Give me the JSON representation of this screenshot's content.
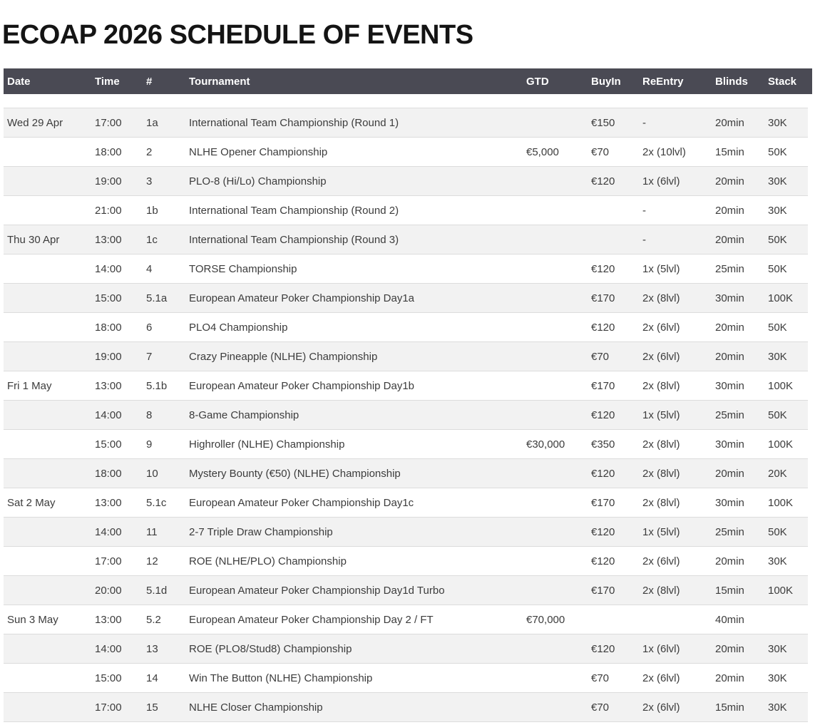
{
  "title": "ECOAP 2026 SCHEDULE OF EVENTS",
  "colors": {
    "header_background": "#4a4a54",
    "header_text": "#ffffff",
    "row_stripe": "#f2f2f2",
    "row_border": "#dcdcdc",
    "body_text": "#3c3c3c",
    "title_text": "#141414"
  },
  "table": {
    "columns": [
      "Date",
      "Time",
      "#",
      "Tournament",
      "GTD",
      "BuyIn",
      "ReEntry",
      "Blinds",
      "Stack"
    ],
    "column_keys": [
      "date",
      "time",
      "num",
      "tournament",
      "gtd",
      "buyin",
      "reentry",
      "blinds",
      "stack"
    ],
    "rows": [
      {
        "date": "Wed 29 Apr",
        "time": "17:00",
        "num": "1a",
        "tournament": "International Team Championship (Round 1)",
        "gtd": "",
        "buyin": "€150",
        "reentry": "-",
        "blinds": "20min",
        "stack": "30K"
      },
      {
        "date": "",
        "time": "18:00",
        "num": "2",
        "tournament": "NLHE Opener Championship",
        "gtd": "€5,000",
        "buyin": "€70",
        "reentry": "2x (10lvl)",
        "blinds": "15min",
        "stack": "50K"
      },
      {
        "date": "",
        "time": "19:00",
        "num": "3",
        "tournament": "PLO-8 (Hi/Lo) Championship",
        "gtd": "",
        "buyin": "€120",
        "reentry": "1x (6lvl)",
        "blinds": "20min",
        "stack": "30K"
      },
      {
        "date": "",
        "time": "21:00",
        "num": "1b",
        "tournament": "International Team Championship (Round 2)",
        "gtd": "",
        "buyin": "",
        "reentry": "-",
        "blinds": "20min",
        "stack": "30K"
      },
      {
        "date": "Thu 30 Apr",
        "time": "13:00",
        "num": "1c",
        "tournament": "International Team Championship (Round 3)",
        "gtd": "",
        "buyin": "",
        "reentry": "-",
        "blinds": "20min",
        "stack": "50K"
      },
      {
        "date": "",
        "time": "14:00",
        "num": "4",
        "tournament": "TORSE Championship",
        "gtd": "",
        "buyin": "€120",
        "reentry": "1x (5lvl)",
        "blinds": "25min",
        "stack": "50K"
      },
      {
        "date": "",
        "time": "15:00",
        "num": "5.1a",
        "tournament": "European Amateur Poker Championship Day1a",
        "gtd": "",
        "buyin": "€170",
        "reentry": "2x (8lvl)",
        "blinds": "30min",
        "stack": "100K"
      },
      {
        "date": "",
        "time": "18:00",
        "num": "6",
        "tournament": "PLO4 Championship",
        "gtd": "",
        "buyin": "€120",
        "reentry": "2x (6lvl)",
        "blinds": "20min",
        "stack": "50K"
      },
      {
        "date": "",
        "time": "19:00",
        "num": "7",
        "tournament": "Crazy Pineapple (NLHE) Championship",
        "gtd": "",
        "buyin": "€70",
        "reentry": "2x (6lvl)",
        "blinds": "20min",
        "stack": "30K"
      },
      {
        "date": "Fri 1 May",
        "time": "13:00",
        "num": "5.1b",
        "tournament": "European Amateur Poker Championship Day1b",
        "gtd": "",
        "buyin": "€170",
        "reentry": "2x (8lvl)",
        "blinds": "30min",
        "stack": "100K"
      },
      {
        "date": "",
        "time": "14:00",
        "num": "8",
        "tournament": "8-Game Championship",
        "gtd": "",
        "buyin": "€120",
        "reentry": "1x (5lvl)",
        "blinds": "25min",
        "stack": "50K"
      },
      {
        "date": "",
        "time": "15:00",
        "num": "9",
        "tournament": "Highroller (NLHE) Championship",
        "gtd": "€30,000",
        "buyin": "€350",
        "reentry": "2x (8lvl)",
        "blinds": "30min",
        "stack": "100K"
      },
      {
        "date": "",
        "time": "18:00",
        "num": "10",
        "tournament": "Mystery Bounty (€50) (NLHE) Championship",
        "gtd": "",
        "buyin": "€120",
        "reentry": "2x (8lvl)",
        "blinds": "20min",
        "stack": "20K"
      },
      {
        "date": "Sat 2 May",
        "time": "13:00",
        "num": "5.1c",
        "tournament": "European Amateur Poker Championship Day1c",
        "gtd": "",
        "buyin": "€170",
        "reentry": "2x (8lvl)",
        "blinds": "30min",
        "stack": "100K"
      },
      {
        "date": "",
        "time": "14:00",
        "num": "11",
        "tournament": "2-7 Triple Draw Championship",
        "gtd": "",
        "buyin": "€120",
        "reentry": "1x (5lvl)",
        "blinds": "25min",
        "stack": "50K"
      },
      {
        "date": "",
        "time": "17:00",
        "num": "12",
        "tournament": "ROE (NLHE/PLO) Championship",
        "gtd": "",
        "buyin": "€120",
        "reentry": "2x (6lvl)",
        "blinds": "20min",
        "stack": "30K"
      },
      {
        "date": "",
        "time": "20:00",
        "num": "5.1d",
        "tournament": "European Amateur Poker Championship Day1d Turbo",
        "gtd": "",
        "buyin": "€170",
        "reentry": "2x (8lvl)",
        "blinds": "15min",
        "stack": "100K"
      },
      {
        "date": "Sun 3 May",
        "time": "13:00",
        "num": "5.2",
        "tournament": "European Amateur Poker Championship Day 2 / FT",
        "gtd": "€70,000",
        "buyin": "",
        "reentry": "",
        "blinds": "40min",
        "stack": ""
      },
      {
        "date": "",
        "time": "14:00",
        "num": "13",
        "tournament": "ROE (PLO8/Stud8) Championship",
        "gtd": "",
        "buyin": "€120",
        "reentry": "1x (6lvl)",
        "blinds": "20min",
        "stack": "30K"
      },
      {
        "date": "",
        "time": "15:00",
        "num": "14",
        "tournament": "Win The Button (NLHE) Championship",
        "gtd": "",
        "buyin": "€70",
        "reentry": "2x (6lvl)",
        "blinds": "20min",
        "stack": "30K"
      },
      {
        "date": "",
        "time": "17:00",
        "num": "15",
        "tournament": "NLHE Closer Championship",
        "gtd": "",
        "buyin": "€70",
        "reentry": "2x (6lvl)",
        "blinds": "15min",
        "stack": "30K"
      }
    ]
  }
}
